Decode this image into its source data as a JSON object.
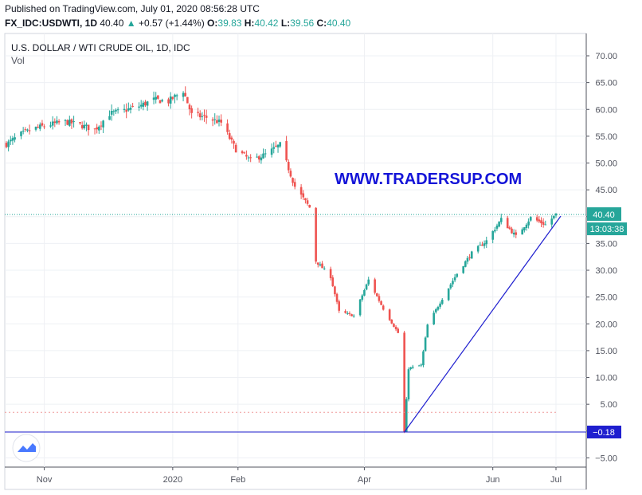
{
  "header": {
    "published": "Published on TradingView.com, July 01, 2020 08:56:28 UTC",
    "symbol": "FX_IDC:USDWTI, 1D",
    "last": "40.40",
    "change": "+0.57 (+1.44%)",
    "o_label": "O:",
    "o_val": "39.83",
    "h_label": "H:",
    "h_val": "40.42",
    "l_label": "L:",
    "l_val": "39.56",
    "c_label": "C:",
    "c_val": "40.40"
  },
  "watermark": "WWW.TRADERSUP.COM",
  "colors": {
    "up": "#26a69a",
    "down": "#ef5350",
    "line": "#1f1fcf",
    "grid": "#eef0f4",
    "axis": "#50535e"
  },
  "chart_data": {
    "type": "candlestick",
    "title": "U.S. DOLLAR / WTI CRUDE OIL, 1D, IDC",
    "legend": [
      "Vol"
    ],
    "ylim": [
      -6.5,
      73
    ],
    "y_ticks": [
      70,
      65,
      60,
      55,
      50,
      45,
      40,
      35,
      30,
      25,
      20,
      15,
      10,
      5,
      0,
      -5
    ],
    "y_tick_labels": [
      "70.00",
      "65.00",
      "60.00",
      "55.00",
      "50.00",
      "45.00",
      "40.00",
      "35.00",
      "30.00",
      "25.00",
      "20.00",
      "15.00",
      "10.00",
      "5.00",
      "0.00",
      "−5.00"
    ],
    "x_labels": [
      {
        "label": "Nov",
        "date": "2019-11-01"
      },
      {
        "label": "2020",
        "date": "2020-01-01"
      },
      {
        "label": "Feb",
        "date": "2020-02-01"
      },
      {
        "label": "Apr",
        "date": "2020-04-01"
      },
      {
        "label": "Jun",
        "date": "2020-06-01"
      },
      {
        "label": "Jul",
        "date": "2020-07-01"
      }
    ],
    "last_price": {
      "value": 40.4,
      "label": "40.40",
      "countdown": "13:03:38"
    },
    "hline": {
      "value": -0.18,
      "label": "−0.18"
    },
    "dotted_line": 3.5,
    "trendline": {
      "from": [
        "2020-04-20",
        -0.18
      ],
      "to": [
        "2020-07-01",
        39.8
      ]
    },
    "closes": [
      [
        "2019-10-14",
        53.5
      ],
      [
        "2019-10-21",
        55.4
      ],
      [
        "2019-10-28",
        56.5
      ],
      [
        "2019-11-04",
        57.2
      ],
      [
        "2019-11-11",
        57.7
      ],
      [
        "2019-11-18",
        57.1
      ],
      [
        "2019-11-25",
        56.2
      ],
      [
        "2019-12-02",
        59.2
      ],
      [
        "2019-12-09",
        59.8
      ],
      [
        "2019-12-16",
        60.6
      ],
      [
        "2019-12-23",
        61.8
      ],
      [
        "2019-12-30",
        61.5
      ],
      [
        "2020-01-06",
        63.5
      ],
      [
        "2020-01-10",
        59.0
      ],
      [
        "2020-01-17",
        58.5
      ],
      [
        "2020-01-24",
        57.5
      ],
      [
        "2020-01-31",
        52.5
      ],
      [
        "2020-02-07",
        50.5
      ],
      [
        "2020-02-14",
        51.6
      ],
      [
        "2020-02-21",
        53.4
      ],
      [
        "2020-02-28",
        45.6
      ],
      [
        "2020-03-06",
        41.7
      ],
      [
        "2020-03-09",
        31.7
      ],
      [
        "2020-03-16",
        28.8
      ],
      [
        "2020-03-20",
        22.3
      ],
      [
        "2020-03-27",
        21.5
      ],
      [
        "2020-04-03",
        28.2
      ],
      [
        "2020-04-10",
        22.8
      ],
      [
        "2020-04-17",
        18.3
      ],
      [
        "2020-04-20",
        -0.18
      ],
      [
        "2020-04-22",
        11.7
      ],
      [
        "2020-04-28",
        12.3
      ],
      [
        "2020-05-01",
        19.8
      ],
      [
        "2020-05-08",
        24.7
      ],
      [
        "2020-05-15",
        29.4
      ],
      [
        "2020-05-22",
        33.2
      ],
      [
        "2020-05-29",
        35.5
      ],
      [
        "2020-06-05",
        39.5
      ],
      [
        "2020-06-12",
        36.3
      ],
      [
        "2020-06-19",
        39.8
      ],
      [
        "2020-06-26",
        38.5
      ],
      [
        "2020-07-01",
        40.4
      ]
    ]
  }
}
